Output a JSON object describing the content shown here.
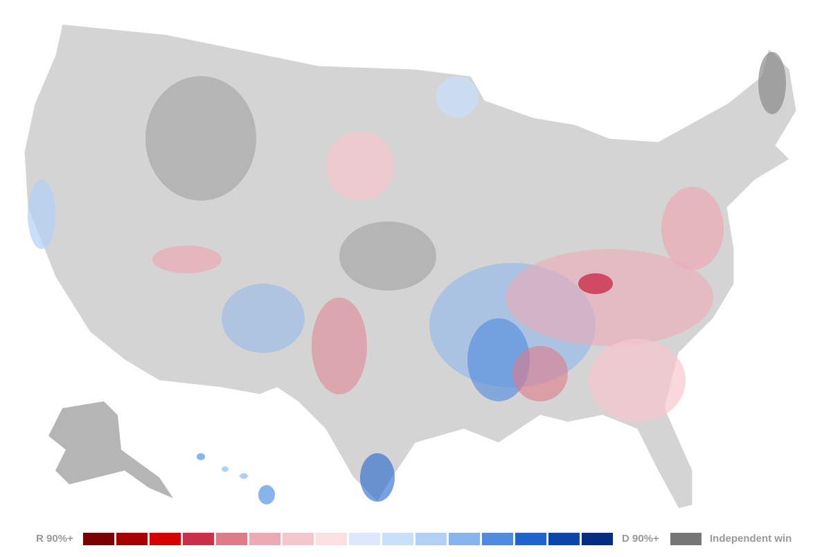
{
  "legend": {
    "left_label": "R 90%+",
    "right_label": "D 90%+",
    "colors": [
      "#7a0000",
      "#a50000",
      "#d40000",
      "#c9304a",
      "#e07a88",
      "#ecaab5",
      "#f6c6ce",
      "#fbdfe3",
      "#dde9fb",
      "#cadff8",
      "#b2d0f5",
      "#88b4ec",
      "#4f8be0",
      "#1f64cc",
      "#0b45ae",
      "#052d84"
    ],
    "independent": {
      "label": "Independent win",
      "color": "#777777"
    }
  }
}
